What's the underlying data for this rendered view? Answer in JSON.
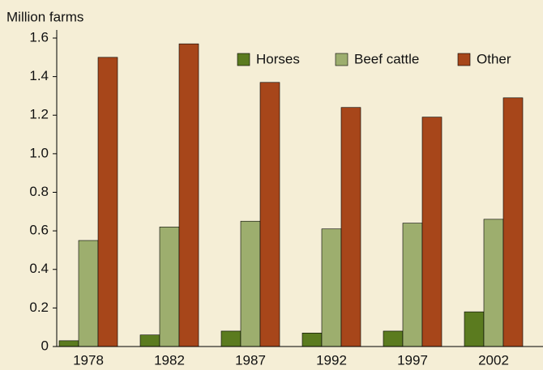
{
  "chart_data": {
    "type": "bar",
    "y_axis_label": "Million farms",
    "categories": [
      "1978",
      "1982",
      "1987",
      "1992",
      "1997",
      "2002"
    ],
    "series": [
      {
        "name": "Horses",
        "color": "#5b7b1f",
        "values": [
          0.03,
          0.06,
          0.08,
          0.07,
          0.08,
          0.18
        ]
      },
      {
        "name": "Beef cattle",
        "color": "#9dae6e",
        "values": [
          0.55,
          0.62,
          0.65,
          0.61,
          0.64,
          0.66
        ]
      },
      {
        "name": "Other",
        "color": "#a7461a",
        "values": [
          1.5,
          1.57,
          1.37,
          1.24,
          1.19,
          1.29
        ]
      }
    ],
    "ylim": [
      0,
      1.6
    ],
    "yticks": [
      0,
      0.2,
      0.4,
      0.6,
      0.8,
      {
        "value": 1,
        "label": "1.0"
      },
      1.2,
      1.4,
      1.6
    ],
    "legend": "top-right"
  }
}
